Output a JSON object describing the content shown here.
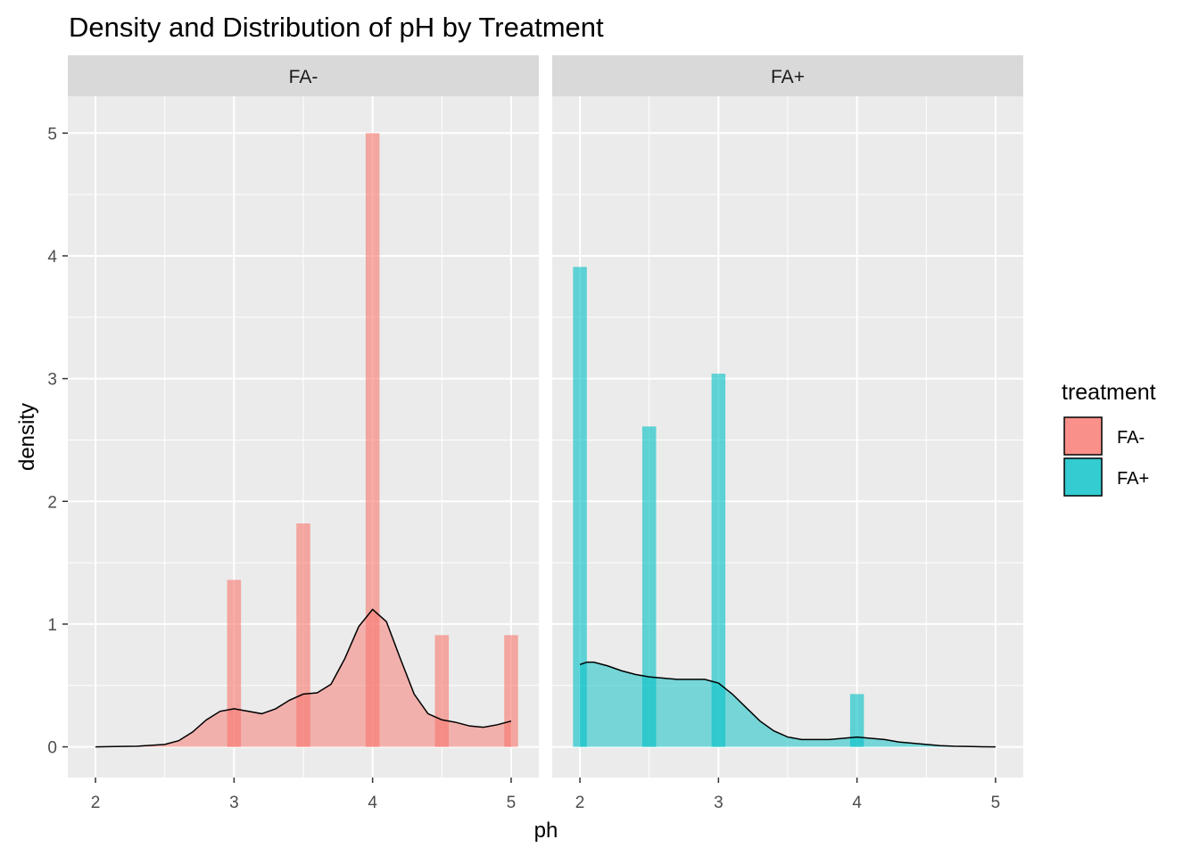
{
  "chart_data": {
    "type": "area",
    "title": "Density and Distribution of pH by Treatment",
    "xlabel": "ph",
    "ylabel": "density",
    "xlim": [
      1.8,
      5.2
    ],
    "ylim": [
      -0.25,
      5.3
    ],
    "x_ticks": [
      2,
      3,
      4,
      5
    ],
    "y_ticks": [
      0,
      1,
      2,
      3,
      4,
      5
    ],
    "grid": true,
    "legend": {
      "title": "treatment",
      "position": "right",
      "entries": [
        {
          "label": "FA-",
          "color": "#F8766D"
        },
        {
          "label": "FA+",
          "color": "#00BFC4"
        }
      ]
    },
    "panels": [
      {
        "label": "FA-",
        "color": "#F8766D",
        "histogram": {
          "bin_width": 0.1,
          "bins": [
            {
              "x": 3.0,
              "density": 1.36
            },
            {
              "x": 3.5,
              "density": 1.82
            },
            {
              "x": 4.0,
              "density": 5.0
            },
            {
              "x": 4.5,
              "density": 0.91
            },
            {
              "x": 5.0,
              "density": 0.91
            }
          ]
        },
        "density_curve": {
          "x": [
            2.0,
            2.3,
            2.5,
            2.6,
            2.7,
            2.8,
            2.9,
            3.0,
            3.1,
            3.2,
            3.3,
            3.4,
            3.5,
            3.6,
            3.7,
            3.8,
            3.9,
            4.0,
            4.1,
            4.2,
            4.3,
            4.4,
            4.5,
            4.6,
            4.7,
            4.8,
            4.9,
            5.0
          ],
          "y": [
            0.0,
            0.005,
            0.02,
            0.05,
            0.12,
            0.22,
            0.29,
            0.31,
            0.29,
            0.27,
            0.31,
            0.38,
            0.43,
            0.44,
            0.51,
            0.72,
            0.98,
            1.12,
            1.02,
            0.72,
            0.43,
            0.27,
            0.22,
            0.2,
            0.17,
            0.16,
            0.18,
            0.21
          ]
        }
      },
      {
        "label": "FA+",
        "color": "#00BFC4",
        "histogram": {
          "bin_width": 0.1,
          "bins": [
            {
              "x": 2.0,
              "density": 3.91
            },
            {
              "x": 2.5,
              "density": 2.61
            },
            {
              "x": 3.0,
              "density": 3.04
            },
            {
              "x": 4.0,
              "density": 0.43
            }
          ]
        },
        "density_curve": {
          "x": [
            2.0,
            2.05,
            2.1,
            2.2,
            2.3,
            2.4,
            2.5,
            2.6,
            2.7,
            2.8,
            2.9,
            3.0,
            3.1,
            3.2,
            3.3,
            3.4,
            3.5,
            3.6,
            3.7,
            3.8,
            3.9,
            4.0,
            4.1,
            4.2,
            4.3,
            4.4,
            4.5,
            4.6,
            4.7,
            4.8,
            4.9,
            5.0
          ],
          "y": [
            0.67,
            0.69,
            0.69,
            0.66,
            0.62,
            0.59,
            0.57,
            0.56,
            0.55,
            0.55,
            0.55,
            0.52,
            0.43,
            0.32,
            0.21,
            0.13,
            0.08,
            0.06,
            0.06,
            0.06,
            0.07,
            0.08,
            0.07,
            0.06,
            0.04,
            0.03,
            0.02,
            0.01,
            0.005,
            0.003,
            0.001,
            0.0
          ]
        }
      }
    ]
  }
}
